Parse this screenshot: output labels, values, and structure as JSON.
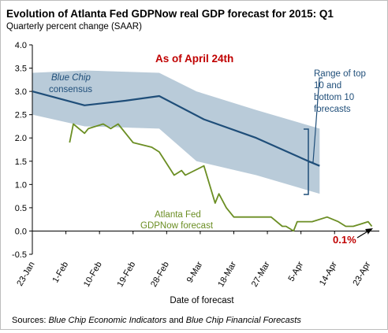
{
  "chart_data": {
    "type": "line",
    "title": "Evolution of Atlanta Fed GDPNow real GDP forecast for 2015: Q1",
    "subtitle": "Quarterly percent change (SAAR)",
    "xlabel": "Date of forecast",
    "ylabel": "",
    "ylim": [
      -0.5,
      4.0
    ],
    "yticks": [
      "-0.5",
      "0.0",
      "0.5",
      "1.0",
      "1.5",
      "2.0",
      "2.5",
      "3.0",
      "3.5",
      "4.0"
    ],
    "xlim": [
      "2015-01-23",
      "2015-04-26"
    ],
    "xticks": [
      {
        "date": "2015-01-23",
        "label": "23-Jan"
      },
      {
        "date": "2015-02-01",
        "label": "1-Feb"
      },
      {
        "date": "2015-02-10",
        "label": "10-Feb"
      },
      {
        "date": "2015-02-19",
        "label": "19-Feb"
      },
      {
        "date": "2015-02-28",
        "label": "28-Feb"
      },
      {
        "date": "2015-03-09",
        "label": "9-Mar"
      },
      {
        "date": "2015-03-18",
        "label": "18-Mar"
      },
      {
        "date": "2015-03-27",
        "label": "27-Mar"
      },
      {
        "date": "2015-04-05",
        "label": "5-Apr"
      },
      {
        "date": "2015-04-14",
        "label": "14-Apr"
      },
      {
        "date": "2015-04-23",
        "label": "23-Apr"
      }
    ],
    "grid": false,
    "series": [
      {
        "name": "Blue Chip consensus",
        "color": "#1f4e79",
        "points": [
          [
            "2015-01-23",
            3.0
          ],
          [
            "2015-02-06",
            2.7
          ],
          [
            "2015-02-17",
            2.8
          ],
          [
            "2015-02-26",
            2.9
          ],
          [
            "2015-03-10",
            2.4
          ],
          [
            "2015-03-24",
            2.0
          ],
          [
            "2015-04-07",
            1.5
          ],
          [
            "2015-04-10",
            1.4
          ]
        ]
      },
      {
        "name": "Atlanta Fed GDPNow forecast",
        "color": "#6b8e23",
        "points": [
          [
            "2015-02-02",
            1.9
          ],
          [
            "2015-02-03",
            2.3
          ],
          [
            "2015-02-06",
            2.1
          ],
          [
            "2015-02-07",
            2.2
          ],
          [
            "2015-02-11",
            2.3
          ],
          [
            "2015-02-13",
            2.2
          ],
          [
            "2015-02-15",
            2.3
          ],
          [
            "2015-02-19",
            1.9
          ],
          [
            "2015-02-24",
            1.8
          ],
          [
            "2015-02-26",
            1.7
          ],
          [
            "2015-03-02",
            1.2
          ],
          [
            "2015-03-04",
            1.3
          ],
          [
            "2015-03-05",
            1.2
          ],
          [
            "2015-03-10",
            1.4
          ],
          [
            "2015-03-13",
            0.6
          ],
          [
            "2015-03-14",
            0.8
          ],
          [
            "2015-03-16",
            0.5
          ],
          [
            "2015-03-18",
            0.3
          ],
          [
            "2015-03-28",
            0.3
          ],
          [
            "2015-03-31",
            0.1
          ],
          [
            "2015-04-01",
            0.1
          ],
          [
            "2015-04-03",
            0.0
          ],
          [
            "2015-04-04",
            0.2
          ],
          [
            "2015-04-08",
            0.2
          ],
          [
            "2015-04-12",
            0.3
          ],
          [
            "2015-04-15",
            0.2
          ],
          [
            "2015-04-17",
            0.1
          ],
          [
            "2015-04-19",
            0.1
          ],
          [
            "2015-04-21",
            0.15
          ],
          [
            "2015-04-23",
            0.2
          ],
          [
            "2015-04-24",
            0.1
          ]
        ]
      }
    ],
    "band": {
      "name": "Range of top 10 and bottom 10 forecasts",
      "color": "#b9cbd9",
      "upper": [
        [
          "2015-01-23",
          3.4
        ],
        [
          "2015-02-06",
          3.45
        ],
        [
          "2015-02-26",
          3.4
        ],
        [
          "2015-03-08",
          3.0
        ],
        [
          "2015-03-24",
          2.6
        ],
        [
          "2015-04-10",
          2.2
        ]
      ],
      "lower": [
        [
          "2015-01-23",
          2.5
        ],
        [
          "2015-02-06",
          2.25
        ],
        [
          "2015-02-26",
          2.2
        ],
        [
          "2015-03-08",
          1.5
        ],
        [
          "2015-03-24",
          1.2
        ],
        [
          "2015-04-10",
          0.8
        ]
      ]
    },
    "annotations": {
      "as_of": "As of April 24th",
      "blue_chip_label": "Blue Chip consensus",
      "range_label": "Range of top 10 and bottom 10 forecasts",
      "gdpnow_label_line1": "Atlanta Fed",
      "gdpnow_label_line2": "GDPNow forecast",
      "latest_value": "0.1%"
    },
    "sources": "Sources: Blue Chip Economic Indicators and Blue Chip Financial Forecasts"
  }
}
